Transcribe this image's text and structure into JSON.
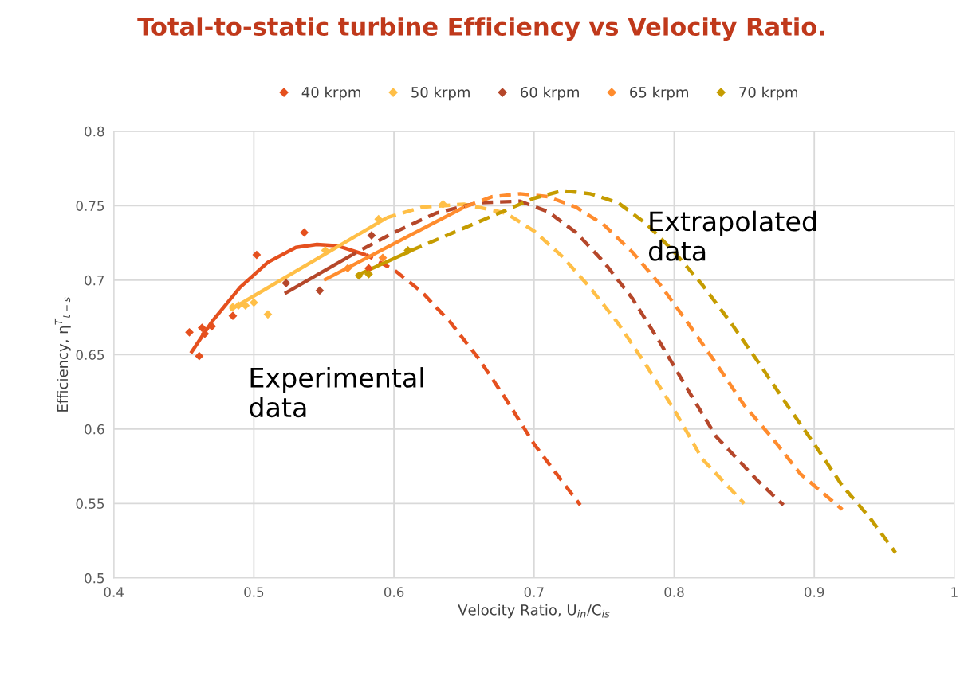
{
  "chart_data": {
    "type": "scatter",
    "title": "Total-to-static turbine Efficiency vs Velocity Ratio.",
    "xlabel": "Velocity Ratio, U$_{in}$/C$_{is}$",
    "ylabel": "Efficiency, η$^{T}$$_{t−s}$",
    "xlim": [
      0.4,
      1
    ],
    "xticks": [
      0.4,
      0.5,
      0.6,
      0.7,
      0.8,
      0.9,
      1
    ],
    "ylim": [
      0.5,
      0.8
    ],
    "yticks": [
      0.5,
      0.55,
      0.6,
      0.65,
      0.7,
      0.75,
      0.8
    ],
    "grid": true,
    "legend": "top",
    "marker": "diamond",
    "annotations": [
      "Experimental\ndata",
      "Extrapolated\ndata"
    ],
    "series": [
      {
        "name": "40 krpm",
        "color": "#e5501e",
        "x": [
          0.454,
          0.461,
          0.463,
          0.465,
          0.47,
          0.485,
          0.502,
          0.536,
          0.582
        ],
        "values": [
          0.665,
          0.649,
          0.668,
          0.664,
          0.669,
          0.676,
          0.717,
          0.732,
          0.708
        ]
      },
      {
        "name": "50 krpm",
        "color": "#ffbf47",
        "x": [
          0.485,
          0.489,
          0.494,
          0.5,
          0.51,
          0.551,
          0.589,
          0.635
        ],
        "values": [
          0.682,
          0.683,
          0.683,
          0.685,
          0.677,
          0.72,
          0.741,
          0.751
        ]
      },
      {
        "name": "60 krpm",
        "color": "#b5472a",
        "x": [
          0.523,
          0.547,
          0.584
        ],
        "values": [
          0.698,
          0.693,
          0.73
        ]
      },
      {
        "name": "65 krpm",
        "color": "#ff8c2e",
        "x": [
          0.567,
          0.592
        ],
        "values": [
          0.708,
          0.715
        ]
      },
      {
        "name": "70 krpm",
        "color": "#c59c00",
        "x": [
          0.575,
          0.582,
          0.61
        ],
        "values": [
          0.703,
          0.704,
          0.72
        ]
      },
      {
        "color": "#e5501e",
        "type": "line",
        "line_style": "solid",
        "marker": "none",
        "x": [
          0.455,
          0.47,
          0.49,
          0.51,
          0.53,
          0.545,
          0.56,
          0.58
        ],
        "values": [
          0.651,
          0.672,
          0.695,
          0.712,
          0.722,
          0.724,
          0.723,
          0.717
        ]
      },
      {
        "color": "#e5501e",
        "type": "line",
        "line_style": "dashed",
        "marker": "none",
        "x": [
          0.58,
          0.6,
          0.62,
          0.64,
          0.66,
          0.68,
          0.7,
          0.72,
          0.733
        ],
        "values": [
          0.717,
          0.707,
          0.692,
          0.672,
          0.648,
          0.62,
          0.59,
          0.565,
          0.549
        ]
      },
      {
        "color": "#ffbf47",
        "type": "line",
        "line_style": "solid",
        "marker": "none",
        "x": [
          0.483,
          0.595
        ],
        "values": [
          0.68,
          0.742
        ]
      },
      {
        "color": "#ffbf47",
        "type": "line",
        "line_style": "dashed",
        "marker": "none",
        "x": [
          0.595,
          0.62,
          0.65,
          0.68,
          0.7,
          0.72,
          0.74,
          0.76,
          0.78,
          0.8,
          0.82,
          0.85
        ],
        "values": [
          0.742,
          0.749,
          0.751,
          0.745,
          0.733,
          0.716,
          0.695,
          0.671,
          0.643,
          0.613,
          0.58,
          0.55
        ]
      },
      {
        "color": "#b5472a",
        "type": "line",
        "line_style": "solid",
        "marker": "none",
        "x": [
          0.522,
          0.57
        ],
        "values": [
          0.691,
          0.717
        ]
      },
      {
        "color": "#b5472a",
        "type": "line",
        "line_style": "dashed",
        "marker": "none",
        "x": [
          0.57,
          0.6,
          0.63,
          0.66,
          0.69,
          0.71,
          0.73,
          0.75,
          0.77,
          0.79,
          0.81,
          0.83,
          0.86,
          0.878
        ],
        "values": [
          0.717,
          0.732,
          0.745,
          0.752,
          0.753,
          0.746,
          0.732,
          0.712,
          0.688,
          0.658,
          0.626,
          0.595,
          0.565,
          0.549
        ]
      },
      {
        "color": "#ff8c2e",
        "type": "line",
        "line_style": "solid",
        "marker": "none",
        "x": [
          0.55,
          0.65
        ],
        "values": [
          0.7,
          0.749
        ]
      },
      {
        "color": "#ff8c2e",
        "type": "line",
        "line_style": "dashed",
        "marker": "none",
        "x": [
          0.65,
          0.67,
          0.69,
          0.71,
          0.73,
          0.75,
          0.77,
          0.79,
          0.81,
          0.83,
          0.85,
          0.87,
          0.89,
          0.92
        ],
        "values": [
          0.749,
          0.756,
          0.758,
          0.756,
          0.749,
          0.737,
          0.719,
          0.697,
          0.671,
          0.644,
          0.616,
          0.594,
          0.57,
          0.546
        ]
      },
      {
        "color": "#c59c00",
        "type": "line",
        "line_style": "solid",
        "marker": "none",
        "x": [
          0.573,
          0.615
        ],
        "values": [
          0.703,
          0.721
        ]
      },
      {
        "color": "#c59c00",
        "type": "line",
        "line_style": "dashed",
        "marker": "none",
        "x": [
          0.615,
          0.65,
          0.68,
          0.7,
          0.72,
          0.74,
          0.76,
          0.78,
          0.8,
          0.82,
          0.84,
          0.86,
          0.88,
          0.9,
          0.92,
          0.94,
          0.958
        ],
        "values": [
          0.721,
          0.735,
          0.747,
          0.755,
          0.76,
          0.758,
          0.752,
          0.738,
          0.719,
          0.697,
          0.672,
          0.645,
          0.617,
          0.59,
          0.562,
          0.54,
          0.517
        ]
      }
    ]
  }
}
